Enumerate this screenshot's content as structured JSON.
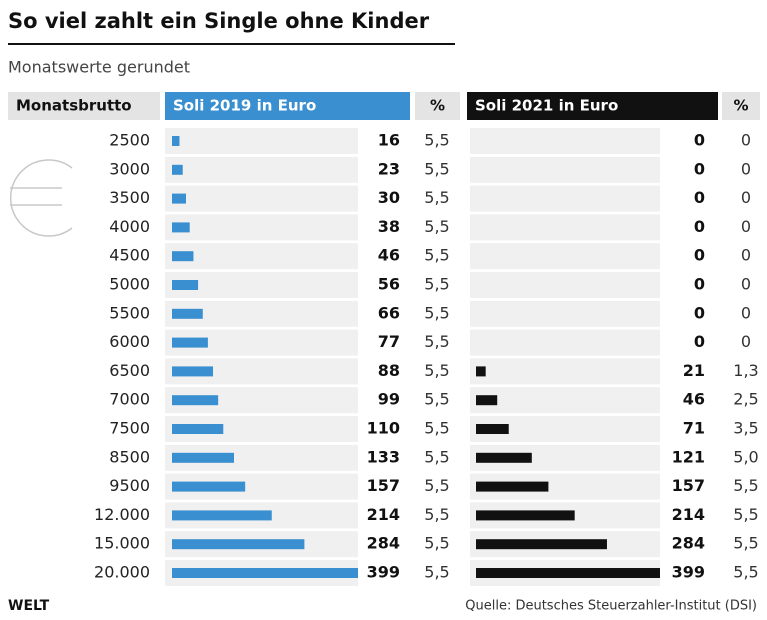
{
  "chart_data": {
    "type": "bar",
    "title": "So viel zahlt ein Single ohne Kinder",
    "subtitle": "Monatswerte gerundet",
    "category_header": "Monatsbrutto",
    "categories": [
      "2500",
      "3000",
      "3500",
      "4000",
      "4500",
      "5000",
      "5500",
      "6000",
      "6500",
      "7000",
      "7500",
      "8500",
      "9500",
      "12.000",
      "15.000",
      "20.000"
    ],
    "series": [
      {
        "name": "Soli 2019 in Euro",
        "color": "#3a8fd0",
        "values": [
          16,
          23,
          30,
          38,
          46,
          56,
          66,
          77,
          88,
          99,
          110,
          133,
          157,
          214,
          284,
          399
        ],
        "percent_header": "%",
        "percents": [
          "5,5",
          "5,5",
          "5,5",
          "5,5",
          "5,5",
          "5,5",
          "5,5",
          "5,5",
          "5,5",
          "5,5",
          "5,5",
          "5,5",
          "5,5",
          "5,5",
          "5,5",
          "5,5"
        ]
      },
      {
        "name": "Soli 2021 in Euro",
        "color": "#111111",
        "values": [
          0,
          0,
          0,
          0,
          0,
          0,
          0,
          0,
          21,
          46,
          71,
          121,
          157,
          214,
          284,
          399
        ],
        "percent_header": "%",
        "percents": [
          "0",
          "0",
          "0",
          "0",
          "0",
          "0",
          "0",
          "0",
          "1,3",
          "2,5",
          "3,5",
          "5,0",
          "5,5",
          "5,5",
          "5,5",
          "5,5"
        ]
      }
    ],
    "brand": "WELT",
    "source": "Quelle: Deutsches Steuerzahler-Institut (DSI)"
  }
}
